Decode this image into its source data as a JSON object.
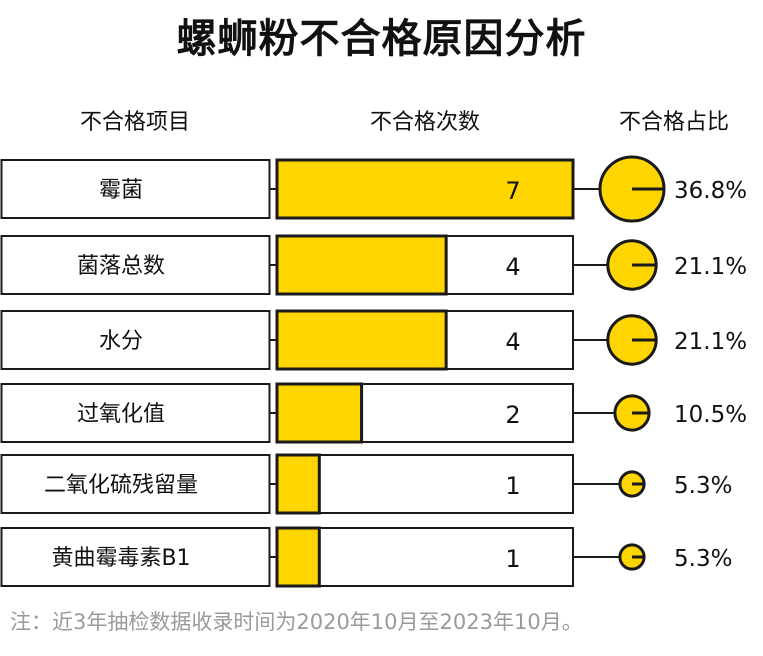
{
  "title": "螺蛳粉不合格原因分析",
  "headers": {
    "item": "不合格项目",
    "count": "不合格次数",
    "share": "不合格占比"
  },
  "colors": {
    "bar": "#FFD500",
    "outline": "#1a1a1a",
    "background": "#ffffff",
    "note": "#9a9a9a"
  },
  "chart_data": {
    "type": "bar",
    "orientation": "horizontal",
    "categories": [
      "霉菌",
      "菌落总数",
      "水分",
      "过氧化值",
      "二氧化硫残留量",
      "黄曲霉毒素B1"
    ],
    "values": [
      7,
      4,
      4,
      2,
      1,
      1
    ],
    "percent_labels": [
      "36.8%",
      "21.1%",
      "21.1%",
      "10.5%",
      "5.3%",
      "5.3%"
    ],
    "xlim": [
      0,
      7
    ]
  },
  "note": "注：近3年抽检数据收录时间为2020年10月至2023年10月。"
}
